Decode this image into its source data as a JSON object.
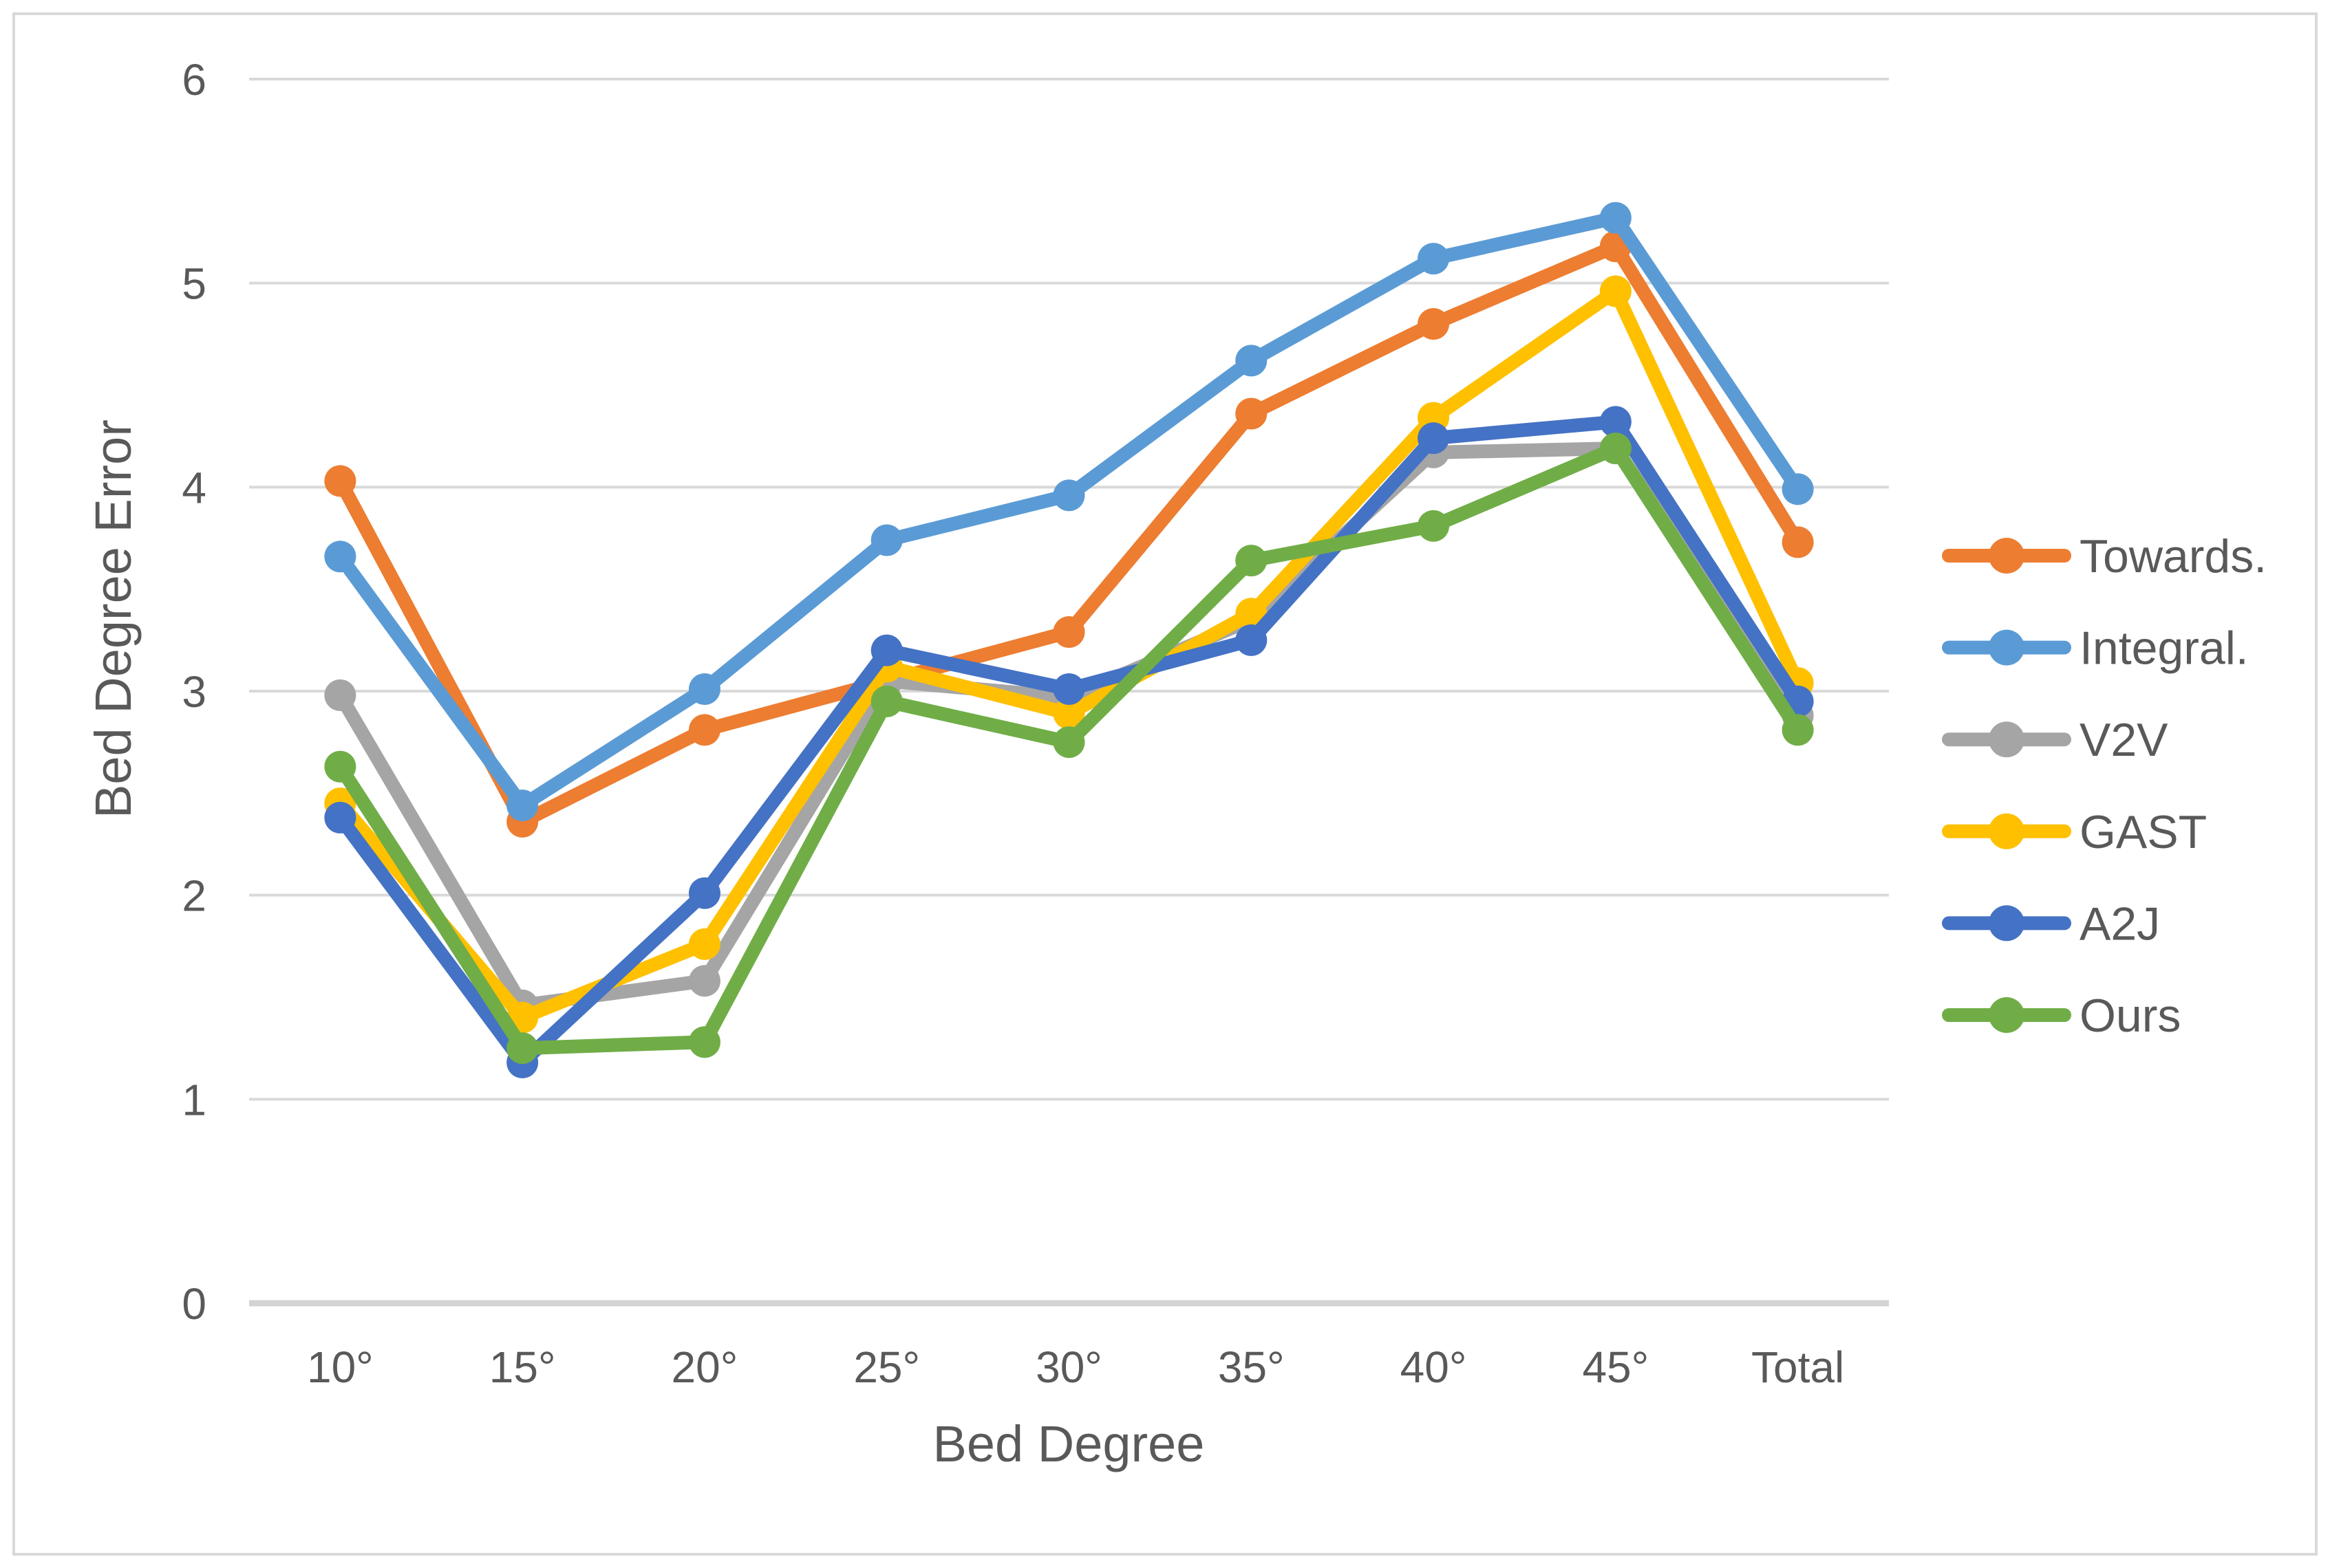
{
  "chart_data": {
    "type": "line",
    "title": "",
    "xlabel": "Bed Degree",
    "ylabel": "Bed Degree Error",
    "categories": [
      "10°",
      "15°",
      "20°",
      "25°",
      "30°",
      "35°",
      "40°",
      "45°",
      "Total"
    ],
    "ylim": [
      0,
      6
    ],
    "yticks": [
      "0",
      "1",
      "2",
      "3",
      "4",
      "5",
      "6"
    ],
    "grid": true,
    "legend_position": "right",
    "series": [
      {
        "name": "Towards.",
        "color": "#ED7D31",
        "values": [
          4.03,
          2.36,
          2.81,
          3.05,
          3.29,
          4.36,
          4.8,
          5.18,
          3.73
        ]
      },
      {
        "name": "Integral.",
        "color": "#5B9BD5",
        "values": [
          3.66,
          2.44,
          3.01,
          3.74,
          3.96,
          4.62,
          5.12,
          5.32,
          3.99
        ]
      },
      {
        "name": "V2V",
        "color": "#A5A5A5",
        "values": [
          2.98,
          1.46,
          1.58,
          3.05,
          2.97,
          3.35,
          4.17,
          4.19,
          2.88
        ]
      },
      {
        "name": "GAST",
        "color": "#FFC000",
        "values": [
          2.45,
          1.4,
          1.76,
          3.12,
          2.89,
          3.38,
          4.34,
          4.96,
          3.04
        ]
      },
      {
        "name": "A2J",
        "color": "#4472C4",
        "values": [
          2.38,
          1.18,
          2.01,
          3.2,
          3.01,
          3.25,
          4.24,
          4.32,
          2.95
        ]
      },
      {
        "name": "Ours",
        "color": "#70AD47",
        "values": [
          2.63,
          1.25,
          1.28,
          2.95,
          2.75,
          3.64,
          3.81,
          4.19,
          2.81
        ]
      }
    ]
  },
  "colors": {
    "text": "#595959",
    "gridline": "#D9D9D9",
    "axis_line": "#D3D3D3",
    "border": "#D9D9D9",
    "background": "#FFFFFF"
  }
}
